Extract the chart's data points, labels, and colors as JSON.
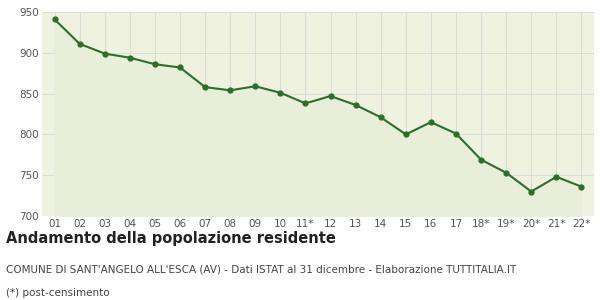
{
  "x_labels": [
    "01",
    "02",
    "03",
    "04",
    "05",
    "06",
    "07",
    "08",
    "09",
    "10",
    "11*",
    "12",
    "13",
    "14",
    "15",
    "16",
    "17",
    "18*",
    "19*",
    "20*",
    "21*",
    "22*"
  ],
  "y_values": [
    941,
    911,
    899,
    894,
    886,
    882,
    858,
    854,
    859,
    851,
    838,
    847,
    836,
    821,
    800,
    815,
    801,
    769,
    753,
    730,
    748,
    736
  ],
  "ylim": [
    700,
    950
  ],
  "yticks": [
    700,
    750,
    800,
    850,
    900,
    950
  ],
  "line_color": "#2d6e2d",
  "fill_color": "#e8eed8",
  "marker": "o",
  "marker_size": 3.5,
  "line_width": 1.5,
  "title": "Andamento della popolazione residente",
  "subtitle": "COMUNE DI SANT'ANGELO ALL'ESCA (AV) - Dati ISTAT al 31 dicembre - Elaborazione TUTTITALIA.IT",
  "footnote": "(*) post-censimento",
  "bg_color": "#ffffff",
  "plot_bg_color": "#f0f2e0",
  "grid_color": "#d8d8d8",
  "title_fontsize": 10.5,
  "subtitle_fontsize": 7.5,
  "footnote_fontsize": 7.5,
  "tick_fontsize": 7.5
}
